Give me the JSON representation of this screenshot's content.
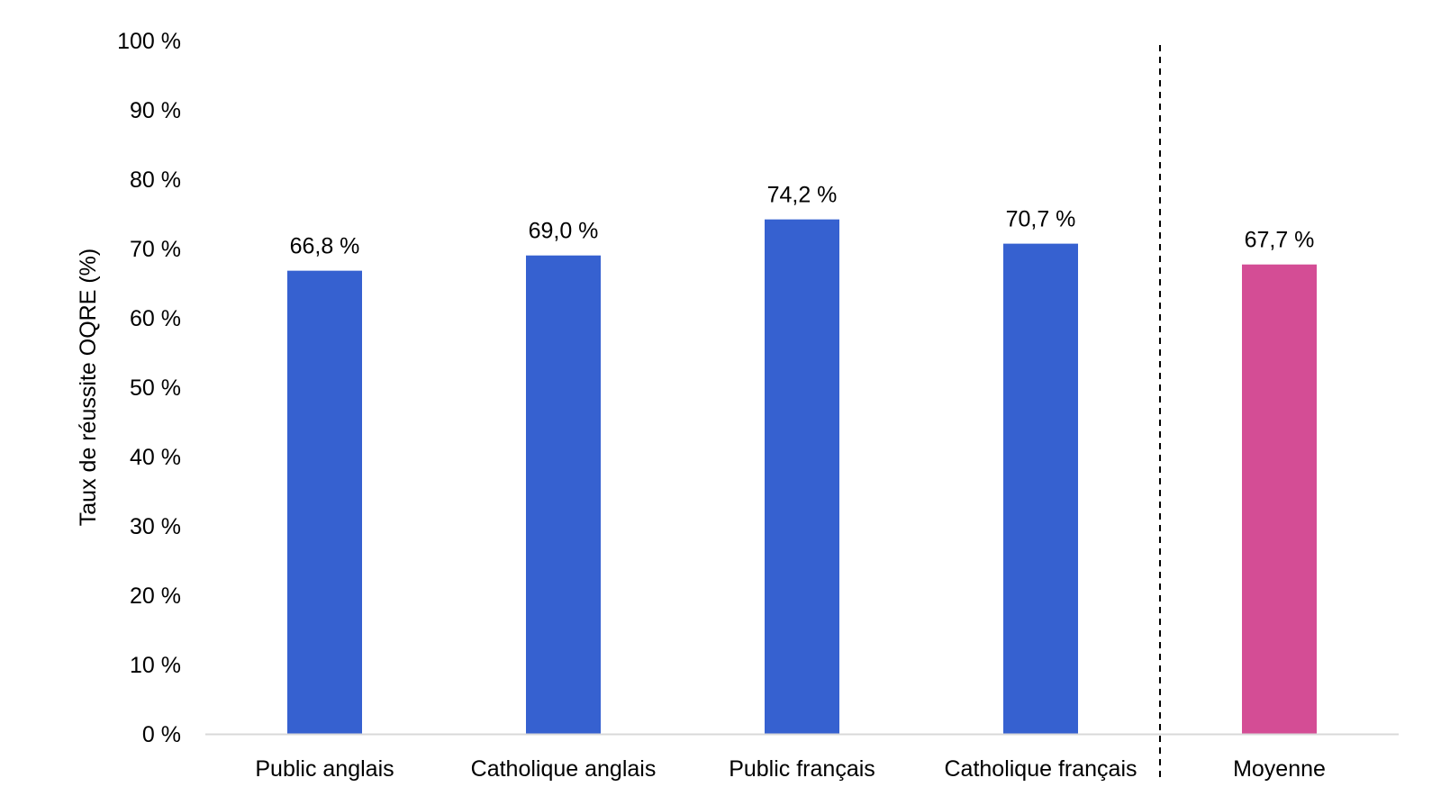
{
  "chart_data": {
    "type": "bar",
    "categories": [
      "Public anglais",
      "Catholique anglais",
      "Public français",
      "Catholique français",
      "Moyenne"
    ],
    "values": [
      66.8,
      69.0,
      74.2,
      70.7,
      67.7
    ],
    "data_labels": [
      "66,8 %",
      "69,0 %",
      "74,2 %",
      "70,7 %",
      "67,7 %"
    ],
    "bar_colors": [
      "#3661d0",
      "#3661d0",
      "#3661d0",
      "#3661d0",
      "#d44d95"
    ],
    "ylabel": "Taux de réussite OQRE (%)",
    "xlabel": "",
    "ylim": [
      0,
      100
    ],
    "yticks": [
      0,
      10,
      20,
      30,
      40,
      50,
      60,
      70,
      80,
      90,
      100
    ],
    "ytick_labels": [
      "0 %",
      "10 %",
      "20 %",
      "30 %",
      "40 %",
      "50 %",
      "60 %",
      "70 %",
      "80 %",
      "90 %",
      "100 %"
    ],
    "grid": false,
    "legend": "none",
    "separator_before_category": "Moyenne",
    "colors": {
      "axis": "#d9d9d9",
      "separator": "#000000"
    }
  }
}
